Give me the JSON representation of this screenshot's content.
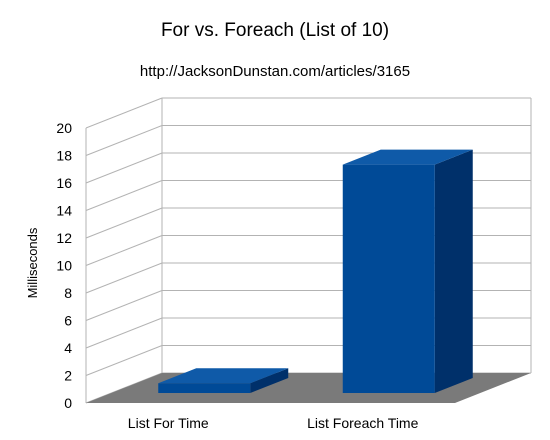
{
  "chart_data": {
    "type": "bar",
    "title": "For vs. Foreach (List of 10)",
    "subtitle": "http://JacksonDunstan.com/articles/3165",
    "xlabel": "",
    "ylabel": "Milliseconds",
    "categories": [
      "List For Time",
      "List Foreach Time"
    ],
    "values": [
      2.6,
      18.5
    ],
    "ylim": [
      0,
      20
    ],
    "yticks": [
      0,
      2,
      4,
      6,
      8,
      10,
      12,
      14,
      16,
      18,
      20
    ],
    "grid": true,
    "legend": "none",
    "style": "3d",
    "colors": {
      "bar_front": "#004a97",
      "bar_top": "#0f5aa8",
      "bar_side": "#00306a",
      "floor": "#7a7a7a",
      "grid": "#b3b3b3"
    }
  }
}
